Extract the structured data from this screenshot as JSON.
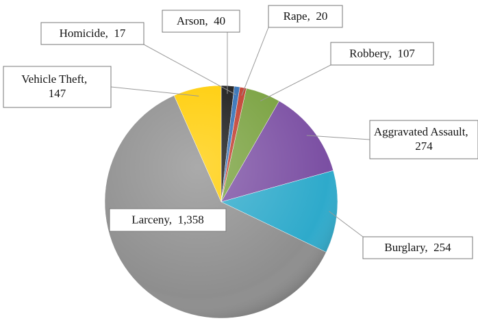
{
  "chart_data": {
    "type": "pie",
    "categories": [
      "Arson",
      "Homicide",
      "Rape",
      "Robbery",
      "Aggravated Assault",
      "Burglary",
      "Larceny",
      "Vehicle Theft"
    ],
    "values": [
      40,
      17,
      20,
      107,
      274,
      254,
      1358,
      147
    ],
    "value_labels": [
      "40",
      "17",
      "20",
      "107",
      "274",
      "254",
      "1,358",
      "147"
    ],
    "colors": [
      "#151515",
      "#2e6db5",
      "#c0392b",
      "#77a03c",
      "#7b4fa3",
      "#2eaacb",
      "#8e8e8e",
      "#ffcc00"
    ]
  }
}
